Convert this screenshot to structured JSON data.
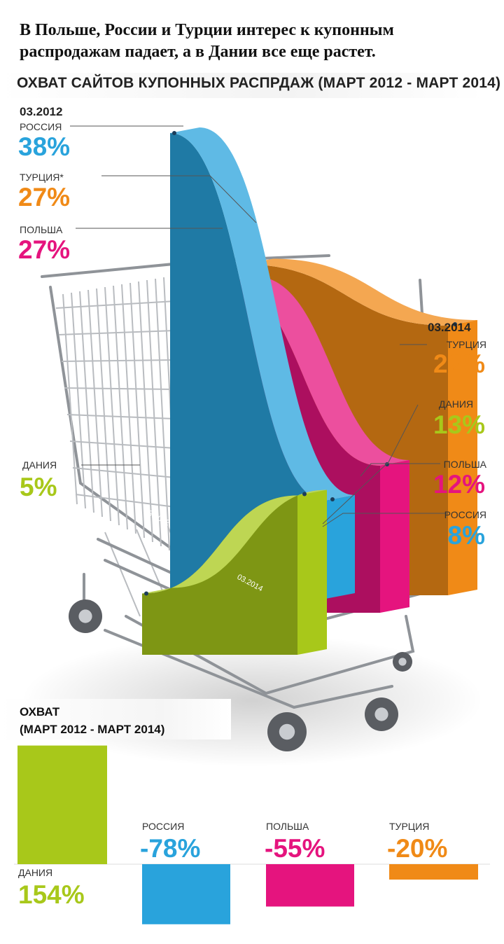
{
  "headline": "В Польше, России и Турции интерес к купонным распродажам падает, а в Дании все еще растет.",
  "subtitle": "ОХВАТ САЙТОВ КУПОННЫХ РАСПРДАЖ (МАРТ 2012 - МАРТ 2014)",
  "start_period": "03.2012",
  "end_period": "03.2014",
  "bar_start_label": "03.2012",
  "bar_end_label": "03.2014",
  "summary_title_line1": "ОХВАТ",
  "summary_title_line2": "(МАРТ 2012 - МАРТ 2014)",
  "colors": {
    "russia": "#29a3dc",
    "turkey": "#f08a17",
    "poland": "#e5147e",
    "denmark": "#a8c81a"
  },
  "chart_data": [
    {
      "type": "line",
      "title": "ОХВАТ САЙТОВ КУПОННЫХ РАСПРДАЖ (МАРТ 2012 - МАРТ 2014)",
      "x": [
        "03.2012",
        "03.2014"
      ],
      "series": [
        {
          "name": "РОССИЯ",
          "start_label": "РОССИЯ",
          "end_label": "РОССИЯ",
          "values": [
            38,
            8
          ],
          "start_text": "38%",
          "end_text": "8%"
        },
        {
          "name": "ТУРЦИЯ",
          "start_label": "ТУРЦИЯ*",
          "end_label": "ТУРЦИЯ",
          "values": [
            27,
            22
          ],
          "start_text": "27%",
          "end_text": "22%"
        },
        {
          "name": "ПОЛЬША",
          "start_label": "ПОЛЬША",
          "end_label": "ПОЛЬША",
          "values": [
            27,
            12
          ],
          "start_text": "27%",
          "end_text": "12%"
        },
        {
          "name": "ДАНИЯ",
          "start_label": "ДАНИЯ",
          "end_label": "ДАНИЯ",
          "values": [
            5,
            13
          ],
          "start_text": "5%",
          "end_text": "13%"
        }
      ]
    },
    {
      "type": "bar",
      "title": "ОХВАТ (МАРТ 2012 - МАРТ 2014)",
      "categories": [
        "ДАНИЯ",
        "РОССИЯ",
        "ПОЛЬША",
        "ТУРЦИЯ"
      ],
      "values": [
        154,
        -78,
        -55,
        -20
      ],
      "value_labels": [
        "154%",
        "-78%",
        "-55%",
        "-20%"
      ]
    }
  ]
}
